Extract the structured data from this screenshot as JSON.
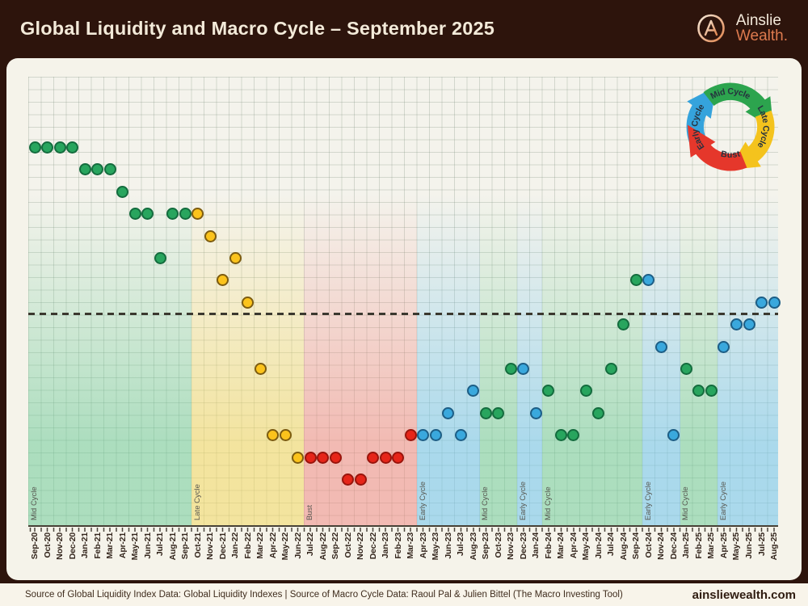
{
  "header": {
    "title": "Global Liquidity and Macro Cycle – September 2025",
    "brand_line1": "Ainslie",
    "brand_line2": "Wealth."
  },
  "footer": {
    "source_text": "Source of Global Liquidity Index Data: Global Liquidity Indexes | Source of Macro Cycle Data: Raoul Pal & Julien Bittel (The Macro Investing Tool)",
    "website": "ainsliewealth.com"
  },
  "cycle_diagram": {
    "position": "top-right",
    "items": [
      {
        "label": "Early Cycle",
        "color": "#35a3dc"
      },
      {
        "label": "Mid Cycle",
        "color": "#2ca44e"
      },
      {
        "label": "Late Cycle",
        "color": "#f4c31d"
      },
      {
        "label": "Bust",
        "color": "#e5372b"
      }
    ]
  },
  "chart_data": {
    "type": "scatter",
    "title": "Global Liquidity and Macro Cycle – September 2025",
    "xlabel": "",
    "ylabel": "",
    "grid": "on",
    "y_axis_labels": "none (no numeric scale shown)",
    "baseline": {
      "level": 0,
      "style": "dashed"
    },
    "ylim": [
      -9.6,
      10.7
    ],
    "months": [
      "Sep-20",
      "Oct-20",
      "Nov-20",
      "Dec-20",
      "Jan-21",
      "Feb-21",
      "Mar-21",
      "Apr-21",
      "May-21",
      "Jun-21",
      "Jul-21",
      "Aug-21",
      "Sep-21",
      "Oct-21",
      "Nov-21",
      "Dec-21",
      "Jan-22",
      "Feb-22",
      "Mar-22",
      "Apr-22",
      "May-22",
      "Jun-22",
      "Jul-22",
      "Aug-22",
      "Sep-22",
      "Oct-22",
      "Nov-22",
      "Dec-22",
      "Jan-23",
      "Feb-23",
      "Mar-23",
      "Apr-23",
      "May-23",
      "Jun-23",
      "Jul-23",
      "Aug-23",
      "Sep-23",
      "Oct-23",
      "Nov-23",
      "Dec-23",
      "Jan-24",
      "Feb-24",
      "Mar-24",
      "Apr-24",
      "May-24",
      "Jun-24",
      "Jul-24",
      "Aug-24",
      "Sep-24",
      "Oct-24",
      "Nov-24",
      "Dec-24",
      "Jan-25",
      "Feb-25",
      "Mar-25",
      "Apr-25",
      "May-25",
      "Jun-25",
      "Jul-25",
      "Aug-25"
    ],
    "levels": [
      7.5,
      7.5,
      7.5,
      7.5,
      6.5,
      6.5,
      6.5,
      5.5,
      4.5,
      4.5,
      2.5,
      4.5,
      4.5,
      4.5,
      3.5,
      1.5,
      2.5,
      0.5,
      -2.5,
      -5.5,
      -5.5,
      -6.5,
      -6.5,
      -6.5,
      -6.5,
      -7.5,
      -7.5,
      -6.5,
      -6.5,
      -6.5,
      -5.5,
      -5.5,
      -5.5,
      -4.5,
      -5.5,
      -3.5,
      -4.5,
      -4.5,
      -2.5,
      -2.5,
      -4.5,
      -3.5,
      -5.5,
      -5.5,
      -3.5,
      -4.5,
      -2.5,
      -0.5,
      1.5,
      1.5,
      -1.5,
      -5.5,
      -2.5,
      -3.5,
      -3.5,
      -1.5,
      -0.5,
      -0.5,
      0.5,
      0.5
    ],
    "phase_bands": [
      {
        "phase": "Mid Cycle",
        "from": "Sep-20",
        "to": "Sep-21"
      },
      {
        "phase": "Late Cycle",
        "from": "Oct-21",
        "to": "Jun-22"
      },
      {
        "phase": "Bust",
        "from": "Jul-22",
        "to": "Mar-23"
      },
      {
        "phase": "Early Cycle",
        "from": "Apr-23",
        "to": "Aug-23"
      },
      {
        "phase": "Mid Cycle",
        "from": "Sep-23",
        "to": "Nov-23"
      },
      {
        "phase": "Early Cycle",
        "from": "Dec-23",
        "to": "Jan-24"
      },
      {
        "phase": "Mid Cycle",
        "from": "Feb-24",
        "to": "Sep-24"
      },
      {
        "phase": "Early Cycle",
        "from": "Oct-24",
        "to": "Dec-24"
      },
      {
        "phase": "Mid Cycle",
        "from": "Jan-25",
        "to": "Mar-25"
      },
      {
        "phase": "Early Cycle",
        "from": "Apr-25",
        "to": "Aug-25"
      }
    ],
    "phases": {
      "Mid Cycle": {
        "dot": "#28a55e",
        "edge": "#146c3e",
        "band": "rgba(100,200,145,0.50)"
      },
      "Late Cycle": {
        "dot": "#fbc31c",
        "edge": "#7d5c10",
        "band": "rgba(242,215,95,0.55)"
      },
      "Bust": {
        "dot": "#e62519",
        "edge": "#99140c",
        "band": "rgba(240,130,122,0.50)"
      },
      "Early Cycle": {
        "dot": "#3aa8dd",
        "edge": "#1d5e86",
        "band": "rgba(110,196,235,0.55)"
      }
    }
  }
}
